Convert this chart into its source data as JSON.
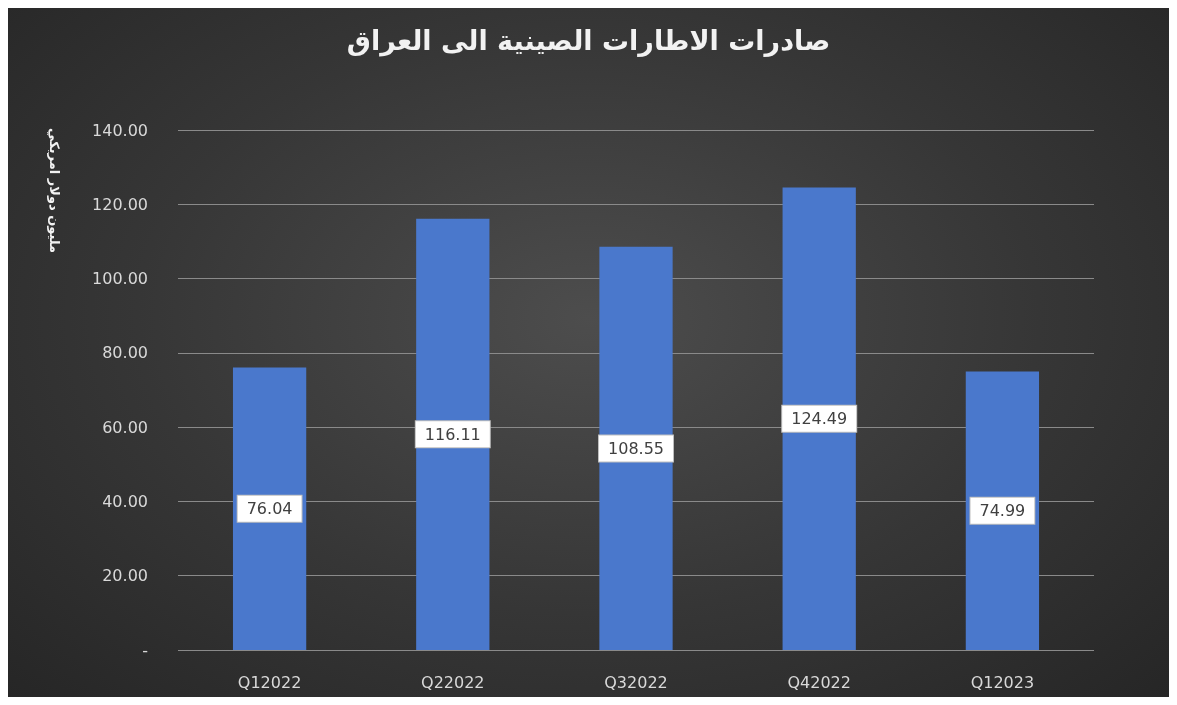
{
  "chart_data": {
    "type": "bar",
    "title": "صادرات الاطارات الصينية الى العراق",
    "ylabel": "مليون دولار امريكي",
    "categories": [
      "Q12022",
      "Q22022",
      "Q32022",
      "Q42022",
      "Q12023"
    ],
    "values": [
      76.04,
      116.11,
      108.55,
      124.49,
      74.99
    ],
    "color": "#4a78cc",
    "ylim": [
      0,
      140
    ],
    "yticks": [
      {
        "value": 0,
        "label": "-"
      },
      {
        "value": 20,
        "label": "20.00"
      },
      {
        "value": 40,
        "label": "40.00"
      },
      {
        "value": 60,
        "label": "60.00"
      },
      {
        "value": 80,
        "label": "80.00"
      },
      {
        "value": 100,
        "label": "100.00"
      },
      {
        "value": 120,
        "label": "120.00"
      },
      {
        "value": 140,
        "label": "140.00"
      }
    ],
    "grid": "y",
    "data_labels": true
  }
}
